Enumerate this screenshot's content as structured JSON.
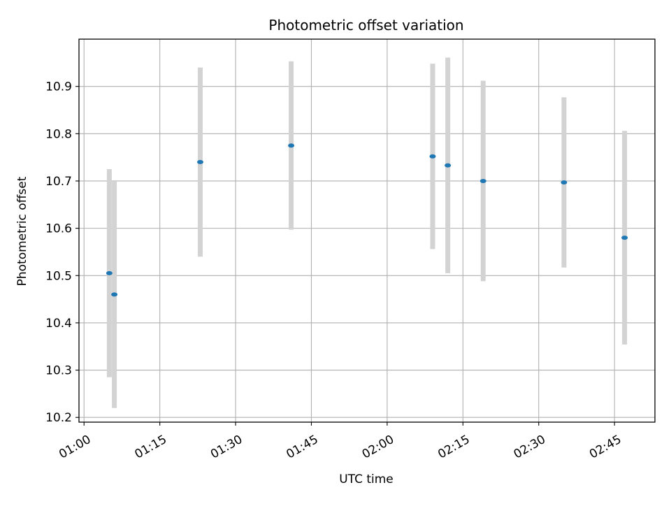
{
  "chart_data": {
    "type": "scatter",
    "title": "Photometric offset variation",
    "xlabel": "UTC time",
    "ylabel": "Photometric offset",
    "x_tick_labels": [
      "01:00",
      "01:15",
      "01:30",
      "01:45",
      "02:00",
      "02:15",
      "02:30",
      "02:45"
    ],
    "y_tick_labels": [
      "10.2",
      "10.3",
      "10.4",
      "10.5",
      "10.6",
      "10.7",
      "10.8",
      "10.9"
    ],
    "xlim": [
      "00:59",
      "02:53"
    ],
    "ylim": [
      10.19,
      11.0
    ],
    "grid": true,
    "series": [
      {
        "x": [
          "01:05",
          "01:06",
          "01:23",
          "01:41",
          "02:09",
          "02:12",
          "02:19",
          "02:35",
          "02:47"
        ],
        "y": [
          10.505,
          10.46,
          10.74,
          10.775,
          10.752,
          10.733,
          10.7,
          10.697,
          10.58
        ],
        "yerr": [
          0.22,
          0.24,
          0.2,
          0.178,
          0.196,
          0.228,
          0.212,
          0.18,
          0.226
        ],
        "color": "#1f77b4",
        "errorbar_color": "#d3d3d3"
      }
    ]
  }
}
